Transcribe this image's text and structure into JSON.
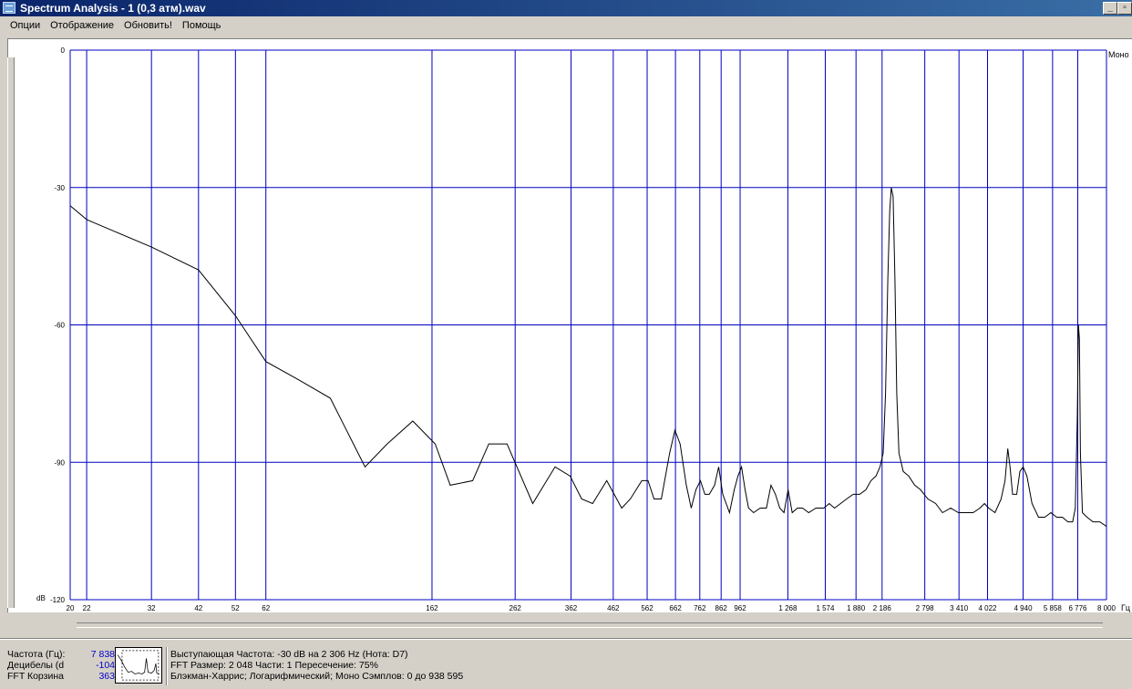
{
  "window": {
    "title": "Spectrum Analysis - 1 (0,3 атм).wav",
    "btn_min": "_",
    "btn_max": "▫"
  },
  "menu": [
    {
      "label": "Опции"
    },
    {
      "label": "Отображение"
    },
    {
      "label": "Обновить!"
    },
    {
      "label": "Помощь"
    }
  ],
  "plot": {
    "channel_label": "Моно"
  },
  "chart_data": {
    "type": "line",
    "x_scale": "log",
    "xlim": [
      20,
      8000
    ],
    "ylim": [
      -120,
      0
    ],
    "ylabel": "dB",
    "xlabel": "Гц",
    "grid": true,
    "x_ticks": [
      "20",
      "22",
      "32",
      "42",
      "52",
      "62",
      "162",
      "262",
      "362",
      "462",
      "562",
      "662",
      "762",
      "862",
      "962",
      "1 268",
      "1 574",
      "1 880",
      "2 186",
      "2 798",
      "3 410",
      "4 022",
      "4 940",
      "5 858",
      "6 776",
      "8 000"
    ],
    "x_tick_values": [
      20,
      22,
      32,
      42,
      52,
      62,
      162,
      262,
      362,
      462,
      562,
      662,
      762,
      862,
      962,
      1268,
      1574,
      1880,
      2186,
      2798,
      3410,
      4022,
      4940,
      5858,
      6776,
      8000
    ],
    "y_ticks": [
      "-120",
      "-90",
      "-60",
      "-30",
      "0"
    ],
    "y_tick_values": [
      -120,
      -90,
      -60,
      -30,
      0
    ],
    "series": [
      {
        "points": [
          [
            20,
            -34
          ],
          [
            22,
            -37
          ],
          [
            32,
            -43
          ],
          [
            42,
            -48
          ],
          [
            52,
            -58
          ],
          [
            62,
            -68
          ],
          [
            75,
            -72
          ],
          [
            90,
            -76
          ],
          [
            110,
            -91
          ],
          [
            125,
            -86
          ],
          [
            145,
            -81
          ],
          [
            165,
            -86
          ],
          [
            180,
            -95
          ],
          [
            205,
            -94
          ],
          [
            225,
            -86
          ],
          [
            250,
            -86
          ],
          [
            290,
            -99
          ],
          [
            330,
            -91
          ],
          [
            360,
            -93
          ],
          [
            385,
            -98
          ],
          [
            410,
            -99
          ],
          [
            445,
            -94
          ],
          [
            485,
            -100
          ],
          [
            510,
            -98
          ],
          [
            545,
            -94
          ],
          [
            565,
            -94
          ],
          [
            585,
            -98
          ],
          [
            610,
            -98
          ],
          [
            640,
            -88
          ],
          [
            660,
            -83
          ],
          [
            680,
            -86
          ],
          [
            705,
            -95
          ],
          [
            725,
            -100
          ],
          [
            745,
            -96
          ],
          [
            765,
            -94
          ],
          [
            785,
            -97
          ],
          [
            805,
            -97
          ],
          [
            830,
            -95
          ],
          [
            850,
            -91
          ],
          [
            870,
            -97
          ],
          [
            905,
            -101
          ],
          [
            930,
            -96
          ],
          [
            950,
            -93
          ],
          [
            970,
            -91
          ],
          [
            990,
            -96
          ],
          [
            1010,
            -100
          ],
          [
            1040,
            -101
          ],
          [
            1080,
            -100
          ],
          [
            1120,
            -100
          ],
          [
            1150,
            -95
          ],
          [
            1180,
            -97
          ],
          [
            1210,
            -100
          ],
          [
            1240,
            -101
          ],
          [
            1270,
            -96
          ],
          [
            1300,
            -101
          ],
          [
            1340,
            -100
          ],
          [
            1380,
            -100
          ],
          [
            1430,
            -101
          ],
          [
            1490,
            -100
          ],
          [
            1560,
            -100
          ],
          [
            1610,
            -99
          ],
          [
            1660,
            -100
          ],
          [
            1720,
            -99
          ],
          [
            1780,
            -98
          ],
          [
            1850,
            -97
          ],
          [
            1920,
            -97
          ],
          [
            1990,
            -96
          ],
          [
            2050,
            -94
          ],
          [
            2110,
            -93
          ],
          [
            2160,
            -91
          ],
          [
            2200,
            -88
          ],
          [
            2230,
            -75
          ],
          [
            2260,
            -50
          ],
          [
            2285,
            -35
          ],
          [
            2306,
            -30
          ],
          [
            2330,
            -32
          ],
          [
            2355,
            -50
          ],
          [
            2380,
            -75
          ],
          [
            2410,
            -88
          ],
          [
            2470,
            -92
          ],
          [
            2550,
            -93
          ],
          [
            2640,
            -95
          ],
          [
            2730,
            -96
          ],
          [
            2850,
            -98
          ],
          [
            2980,
            -99
          ],
          [
            3100,
            -101
          ],
          [
            3250,
            -100
          ],
          [
            3400,
            -101
          ],
          [
            3550,
            -101
          ],
          [
            3700,
            -101
          ],
          [
            3850,
            -100
          ],
          [
            3950,
            -99
          ],
          [
            4050,
            -100
          ],
          [
            4200,
            -101
          ],
          [
            4350,
            -98
          ],
          [
            4450,
            -94
          ],
          [
            4520,
            -87
          ],
          [
            4580,
            -91
          ],
          [
            4650,
            -97
          ],
          [
            4760,
            -97
          ],
          [
            4850,
            -92
          ],
          [
            4940,
            -91
          ],
          [
            5050,
            -93
          ],
          [
            5200,
            -99
          ],
          [
            5400,
            -102
          ],
          [
            5600,
            -102
          ],
          [
            5800,
            -101
          ],
          [
            6000,
            -102
          ],
          [
            6200,
            -102
          ],
          [
            6400,
            -103
          ],
          [
            6580,
            -103
          ],
          [
            6680,
            -100
          ],
          [
            6760,
            -80
          ],
          [
            6800,
            -60
          ],
          [
            6840,
            -63
          ],
          [
            6880,
            -88
          ],
          [
            6960,
            -101
          ],
          [
            7150,
            -102
          ],
          [
            7400,
            -103
          ],
          [
            7700,
            -103
          ],
          [
            8000,
            -104
          ]
        ]
      }
    ]
  },
  "status": {
    "freq_label": "Частота (Гц):",
    "freq_value": "7 838",
    "db_label": "Децибелы (d",
    "db_value": "-104",
    "bin_label": "FFT Корзина",
    "bin_value": "363",
    "line1": "Выступающая Частота: -30 dB на 2 306 Hz (Нота: D7)",
    "line2": "FFT Размер: 2 048  Части: 1  Пересечение: 75%",
    "line3": "Блэкман-Харрис; Логарифмический; Моно  Сэмплов: 0 до 938 595"
  }
}
